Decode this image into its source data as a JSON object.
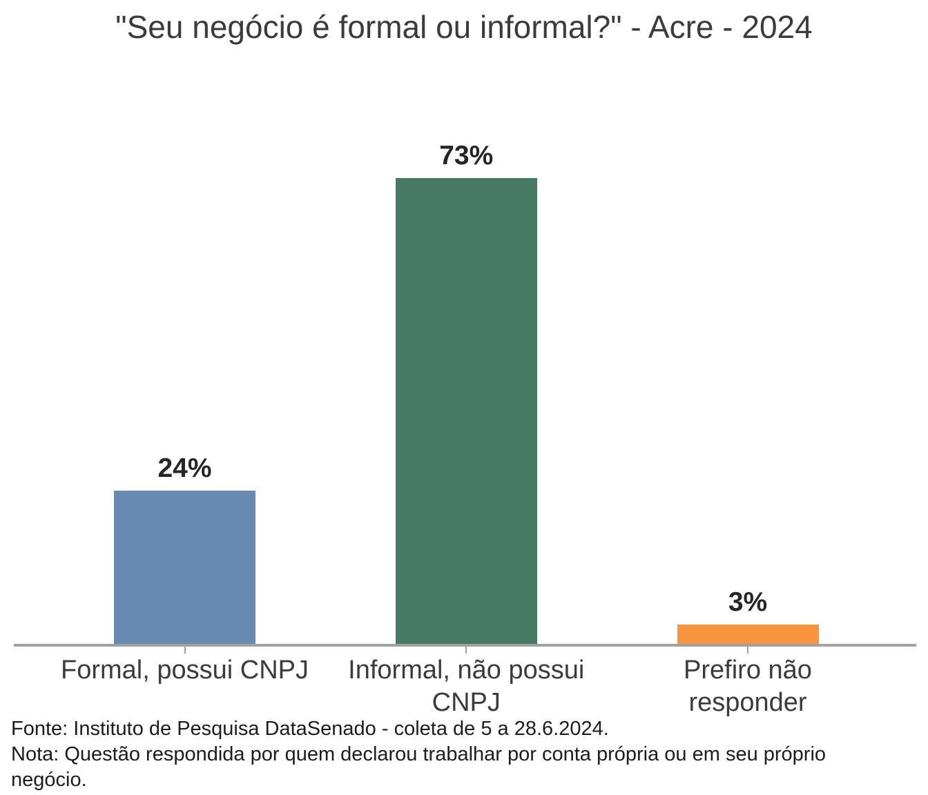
{
  "title": "\"Seu negócio é formal ou informal?\" - Acre - 2024",
  "chart_data": {
    "type": "bar",
    "title": "\"Seu negócio é formal ou informal?\" - Acre - 2024",
    "categories": [
      "Formal, possui CNPJ",
      "Informal, não possui CNPJ",
      "Prefiro não responder"
    ],
    "category_lines": [
      [
        "Formal, possui CNPJ"
      ],
      [
        "Informal, não possui",
        "CNPJ"
      ],
      [
        "Prefiro não",
        "responder"
      ]
    ],
    "values": [
      24,
      73,
      3
    ],
    "value_labels": [
      "24%",
      "73%",
      "3%"
    ],
    "bar_colors": [
      "#6789b2",
      "#477a65",
      "#f8953e"
    ],
    "xlabel": "",
    "ylabel": "",
    "ylim": [
      0,
      100
    ],
    "grid": false,
    "legend": "none",
    "axis_color": "#a1a1a1",
    "value_label_color": "#262626",
    "category_label_color": "#3b3b3b"
  },
  "footer": {
    "source": "Fonte: Instituto de Pesquisa DataSenado - coleta de 5 a 28.6.2024.",
    "note": "Nota: Questão respondida por quem declarou trabalhar por conta própria ou em seu próprio negócio."
  }
}
